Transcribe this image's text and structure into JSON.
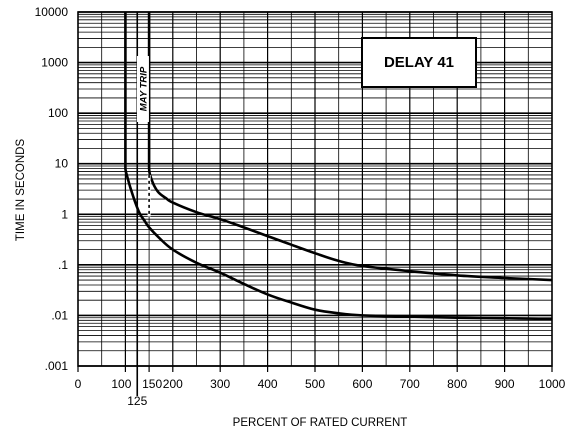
{
  "chart_data": {
    "type": "line",
    "title": "DELAY 41",
    "xlabel": "PERCENT OF RATED CURRENT",
    "ylabel": "TIME IN SECONDS",
    "xlim": [
      0,
      1000
    ],
    "ylim": [
      0.001,
      10000
    ],
    "y_scale": "log",
    "grid": true,
    "x_ticks": [
      {
        "value": 0,
        "label": "0"
      },
      {
        "value": 100,
        "label": "100"
      },
      {
        "value": 150,
        "label": "150"
      },
      {
        "value": 200,
        "label": "200"
      },
      {
        "value": 300,
        "label": "300"
      },
      {
        "value": 400,
        "label": "400"
      },
      {
        "value": 500,
        "label": "500"
      },
      {
        "value": 600,
        "label": "600"
      },
      {
        "value": 700,
        "label": "700"
      },
      {
        "value": 800,
        "label": "800"
      },
      {
        "value": 900,
        "label": "900"
      },
      {
        "value": 1000,
        "label": "1000"
      }
    ],
    "x_extra_tick": {
      "value": 125,
      "label": "125"
    },
    "y_ticks": [
      {
        "value": 10000,
        "label": "10000"
      },
      {
        "value": 1000,
        "label": "1000"
      },
      {
        "value": 100,
        "label": "100"
      },
      {
        "value": 10,
        "label": "10"
      },
      {
        "value": 1,
        "label": "1"
      },
      {
        "value": 0.1,
        "label": ".1"
      },
      {
        "value": 0.01,
        "label": ".01"
      },
      {
        "value": 0.001,
        "label": ".001"
      }
    ],
    "annotations": [
      {
        "text": "MAY TRIP",
        "x": 137,
        "y": 300
      }
    ],
    "series": [
      {
        "x": [
          100,
          100,
          102,
          110,
          120,
          130,
          140,
          150,
          170,
          200,
          250,
          300,
          350,
          400,
          450,
          500,
          550,
          600,
          700,
          800,
          900,
          1000
        ],
        "y": [
          10000,
          8,
          6.5,
          3.5,
          1.8,
          1.05,
          0.75,
          0.55,
          0.35,
          0.2,
          0.11,
          0.07,
          0.042,
          0.026,
          0.018,
          0.013,
          0.011,
          0.01,
          0.0095,
          0.009,
          0.0088,
          0.0085
        ]
      },
      {
        "x": [
          150,
          150,
          152,
          160,
          170,
          185,
          200,
          250,
          300,
          350,
          400,
          450,
          500,
          550,
          600,
          700,
          800,
          900,
          1000
        ],
        "y": [
          10000,
          8,
          6,
          3.8,
          2.7,
          2.1,
          1.7,
          1.1,
          0.8,
          0.55,
          0.37,
          0.25,
          0.17,
          0.12,
          0.095,
          0.075,
          0.062,
          0.055,
          0.05
        ]
      }
    ]
  }
}
